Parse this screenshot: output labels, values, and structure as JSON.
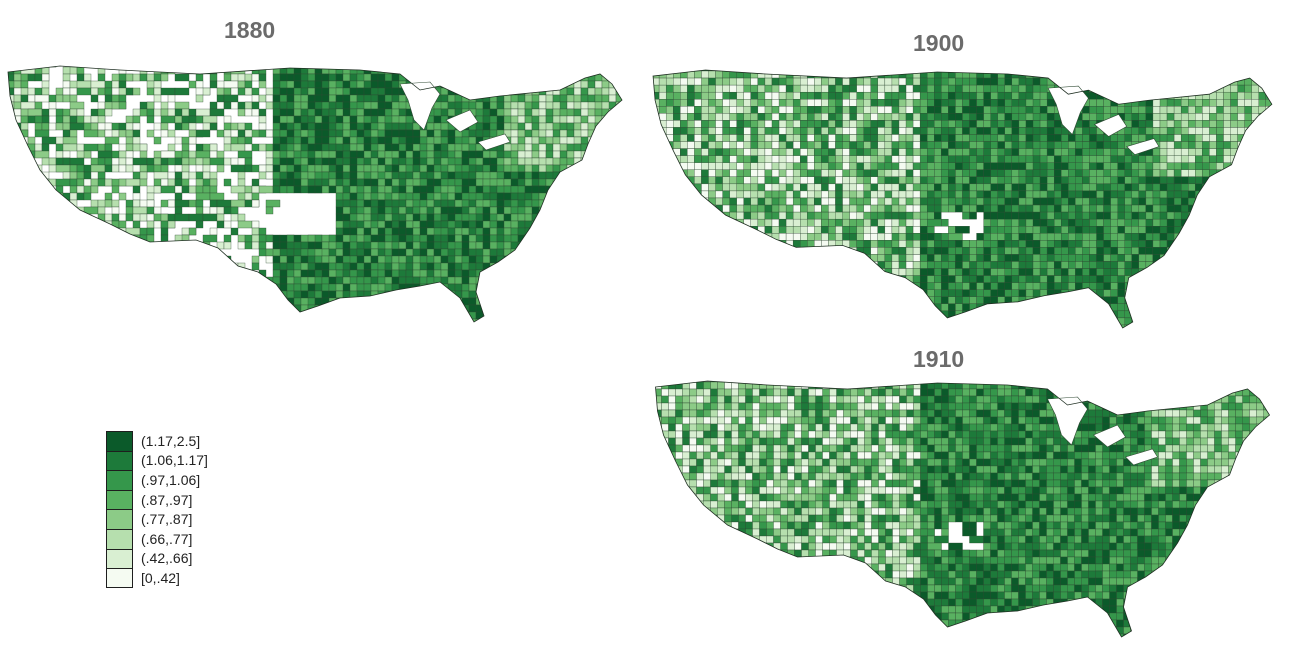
{
  "panels": [
    {
      "title": "1880",
      "missing_west": "many",
      "tone": "patchy"
    },
    {
      "title": "1900",
      "tone": "full"
    },
    {
      "title": "1910",
      "tone": "full"
    }
  ],
  "legend": {
    "items": [
      {
        "label": "(1.17,2.5]",
        "color": "#0b5a2a"
      },
      {
        "label": "(1.06,1.17]",
        "color": "#1d7a3a"
      },
      {
        "label": "(.97,1.06]",
        "color": "#35974b"
      },
      {
        "label": "(.87,.97]",
        "color": "#59b161"
      },
      {
        "label": "(.77,.87]",
        "color": "#8ccb87"
      },
      {
        "label": "(.66,.77]",
        "color": "#b6dfae"
      },
      {
        "label": "(.42,.66]",
        "color": "#d9efd2"
      },
      {
        "label": "[0,.42]",
        "color": "#f5fbf2"
      }
    ]
  }
}
